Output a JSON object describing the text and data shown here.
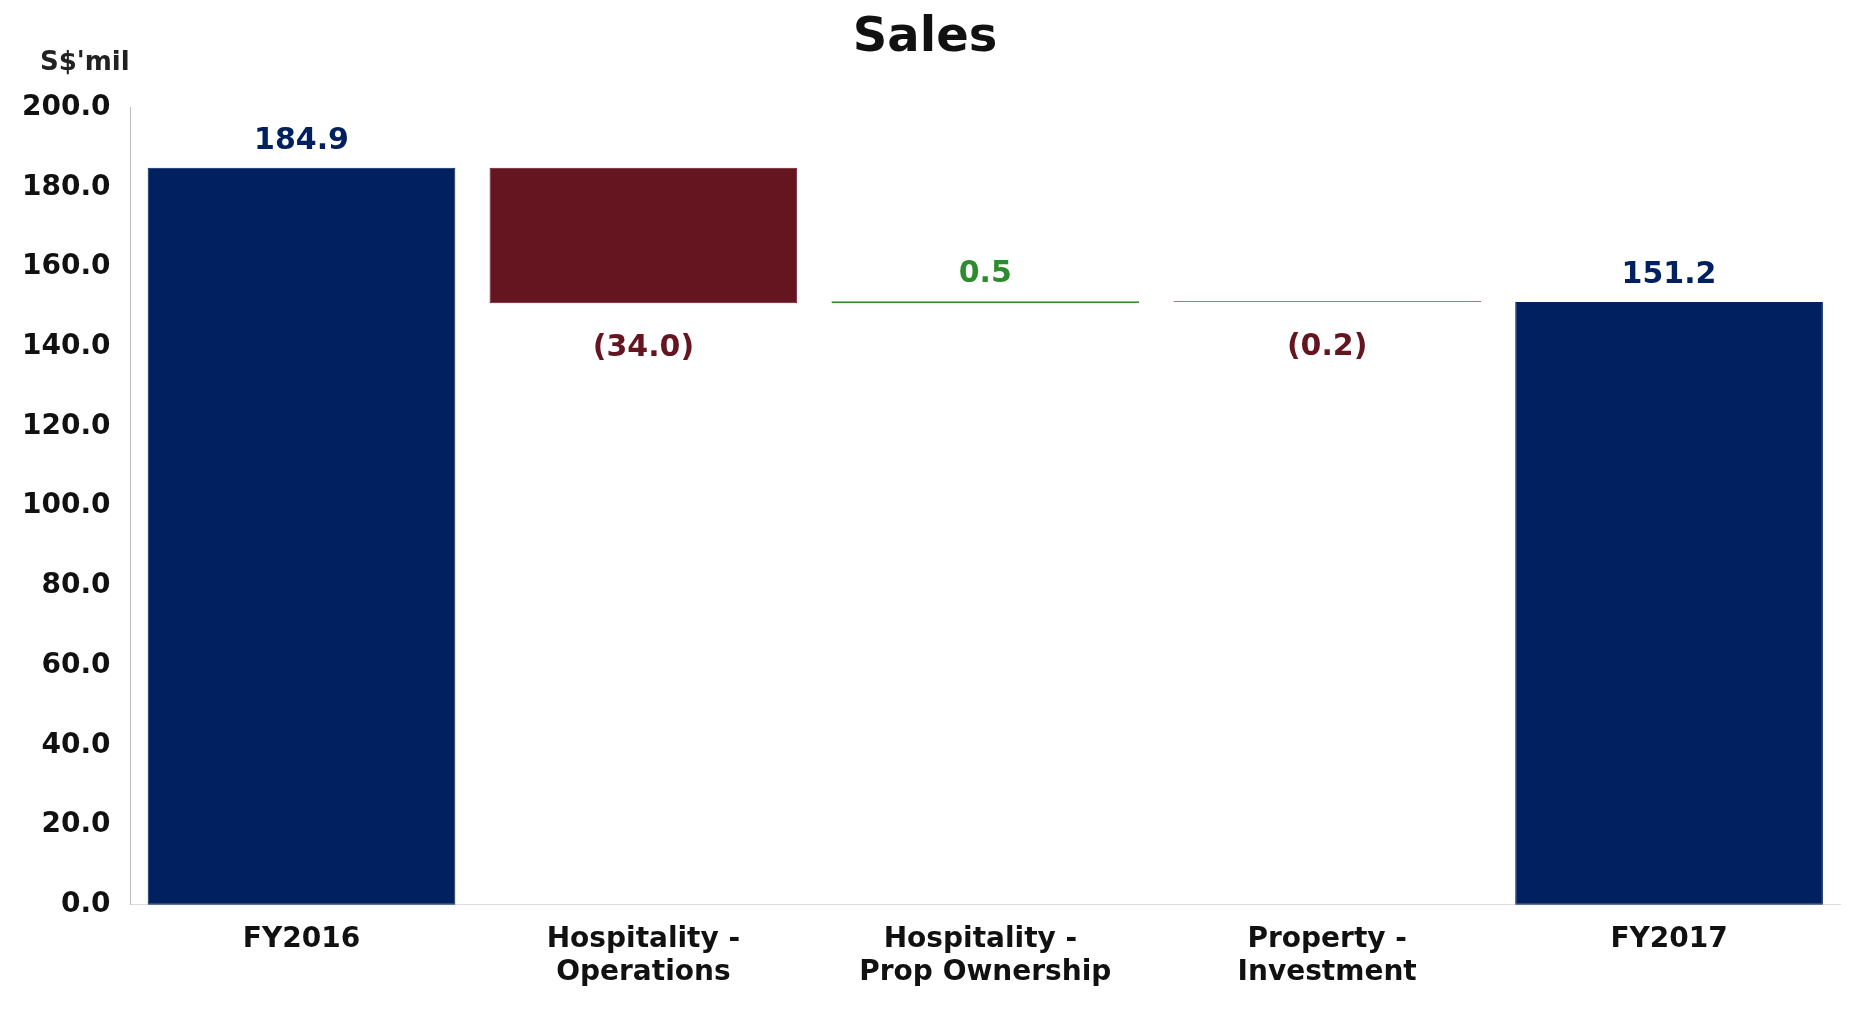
{
  "chart_data": {
    "type": "bar",
    "title": "Sales",
    "ylabel": "S$'mil",
    "categories": [
      "FY2016",
      "Hospitality - Operations",
      "Hospitality -  Prop Ownership",
      "Property - Investment",
      "FY2017"
    ],
    "values": [
      184.9,
      -34.0,
      0.5,
      -0.2,
      151.2
    ],
    "base": [
      0,
      184.9,
      150.9,
      151.4,
      0
    ],
    "colors": [
      "#002060",
      "#651520",
      "#2e8b2e",
      "#651520",
      "#002060"
    ],
    "value_labels": [
      "184.9",
      "(34.0)",
      "0.5",
      "(0.2)",
      "151.2"
    ],
    "ylim": [
      0,
      200
    ],
    "yticks": [
      {
        "value": 0,
        "label": "0.0"
      },
      {
        "value": 20,
        "label": "20.0"
      },
      {
        "value": 40,
        "label": "40.0"
      },
      {
        "value": 60,
        "label": "60.0"
      },
      {
        "value": 80,
        "label": "80.0"
      },
      {
        "value": 100,
        "label": "100.0"
      },
      {
        "value": 120,
        "label": "120.0"
      },
      {
        "value": 140,
        "label": "140.0"
      },
      {
        "value": 160,
        "label": "160.0"
      },
      {
        "value": 180,
        "label": "180.0"
      },
      {
        "value": 200,
        "label": "200.0"
      }
    ],
    "grid": false,
    "legend": false
  }
}
